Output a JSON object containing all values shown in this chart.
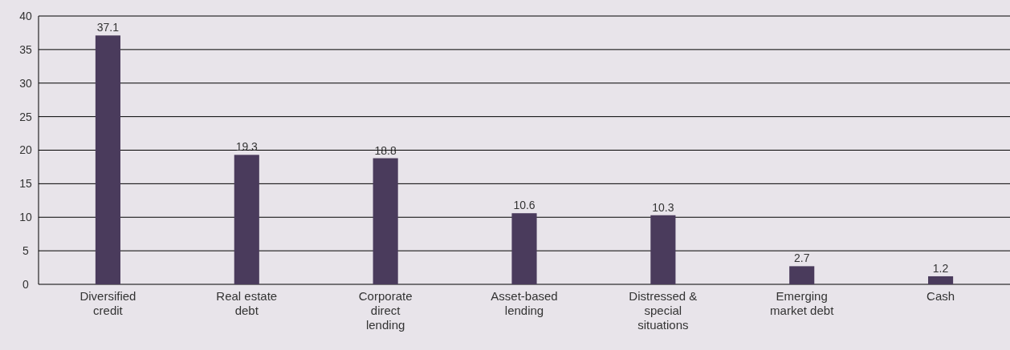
{
  "chart_data": {
    "type": "bar",
    "categories": [
      "Diversified credit",
      "Real estate debt",
      "Corporate direct lending",
      "Asset-based lending",
      "Distressed & special situations",
      "Emerging market debt",
      "Cash"
    ],
    "values": [
      37.1,
      19.3,
      18.8,
      10.6,
      10.3,
      2.7,
      1.2
    ],
    "color": "#4a3b5c",
    "ylim": [
      0,
      40
    ],
    "yticks": [
      0,
      5,
      10,
      15,
      20,
      25,
      30,
      35,
      40
    ],
    "grid": "y",
    "data_labels": true
  }
}
